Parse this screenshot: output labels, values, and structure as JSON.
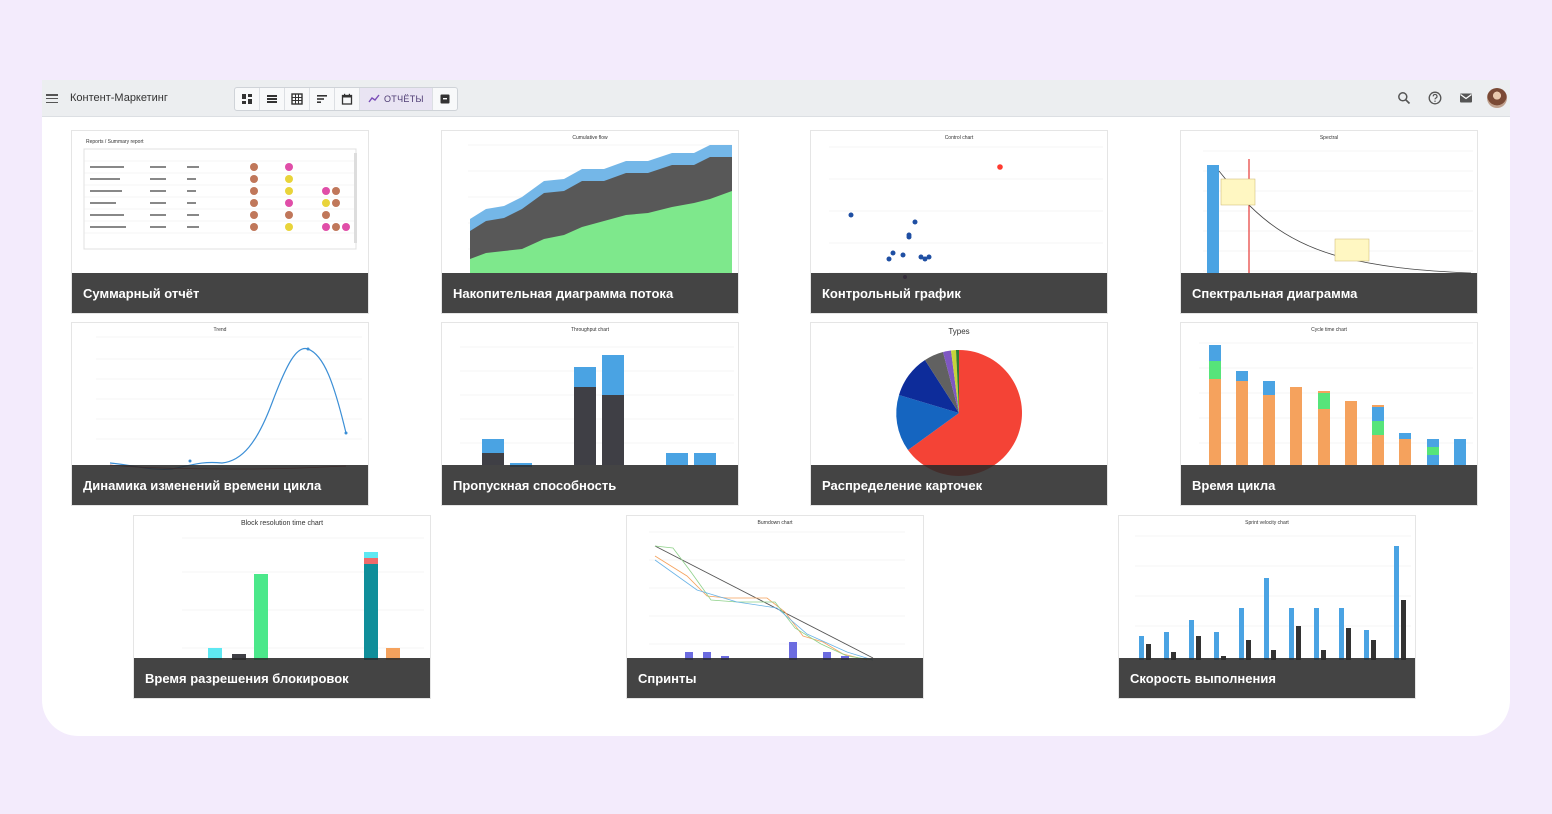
{
  "app": {
    "title": "Контент-Маркетинг",
    "reports_label": "ОТЧЁТЫ"
  },
  "toolbar": {
    "icons": [
      "dashboard-icon",
      "list-icon",
      "grid-icon",
      "sort-icon",
      "calendar-icon",
      "reports-icon",
      "archive-icon"
    ]
  },
  "header_right": {
    "icons": [
      "search-icon",
      "help-icon",
      "mail-icon",
      "avatar"
    ]
  },
  "colors": {
    "background": "#f3ebfc",
    "accent": "#4d3b73",
    "label_bg": "#2a2a2a"
  },
  "cards": [
    {
      "label": "Суммарный отчёт",
      "thumb_title": "Reports / Summary report"
    },
    {
      "label": "Накопительная диаграмма потока",
      "thumb_title": "Cumulative flow"
    },
    {
      "label": "Контрольный график",
      "thumb_title": "Control chart"
    },
    {
      "label": "Спектральная диаграмма",
      "thumb_title": "Spectral"
    },
    {
      "label": "Динамика изменений времени цикла",
      "thumb_title": "Trend"
    },
    {
      "label": "Пропускная способность",
      "thumb_title": "Throughput chart"
    },
    {
      "label": "Распределение карточек",
      "thumb_title": "Types"
    },
    {
      "label": "Время цикла",
      "thumb_title": "Cycle time chart"
    },
    {
      "label": "Время разрешения блокировок",
      "thumb_title": "Block resolution time chart"
    },
    {
      "label": "Спринты",
      "thumb_title": "Burndown chart"
    },
    {
      "label": "Скорость выполнения",
      "thumb_title": "Sprint velocity chart"
    }
  ]
}
